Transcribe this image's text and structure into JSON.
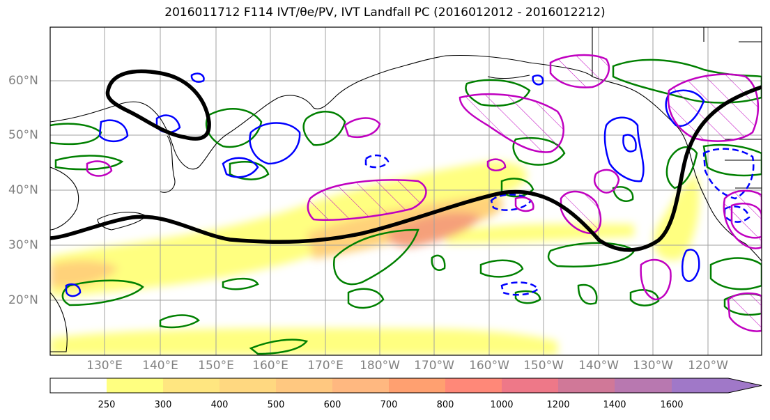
{
  "title": {
    "text": "2016011712 F114 IVT/θe/PV, IVT Landfall PC (2016012012 - 2016012212)"
  },
  "map": {
    "lat_labels": [
      "60°N",
      "50°N",
      "40°N",
      "30°N",
      "20°N"
    ],
    "lon_labels": [
      "130°E",
      "140°E",
      "150°E",
      "160°E",
      "170°E",
      "180°W",
      "170°W",
      "160°W",
      "150°W",
      "140°W",
      "130°W",
      "120°W"
    ],
    "colors": {
      "ivt_fill_light": "#ffff80",
      "ivt_fill_mid": "#ffd27a",
      "ivt_fill_core": "#f5a07a",
      "theta_e_contour": "#000000",
      "pv_green": "#008000",
      "pv_blue": "#0000ff",
      "hatched_magenta": "#c000c0",
      "coastline": "#000000",
      "gridline": "#999999"
    }
  },
  "colorbar": {
    "labels": [
      "250",
      "300",
      "400",
      "500",
      "600",
      "700",
      "800",
      "1000",
      "1200",
      "1400",
      "1600"
    ],
    "colors": [
      "#ffffff",
      "#ffff80",
      "#ffe680",
      "#ffd880",
      "#ffc880",
      "#ffb880",
      "#ffa070",
      "#ff8878",
      "#ee7888",
      "#d07898",
      "#b878b0",
      "#a078c8"
    ]
  }
}
